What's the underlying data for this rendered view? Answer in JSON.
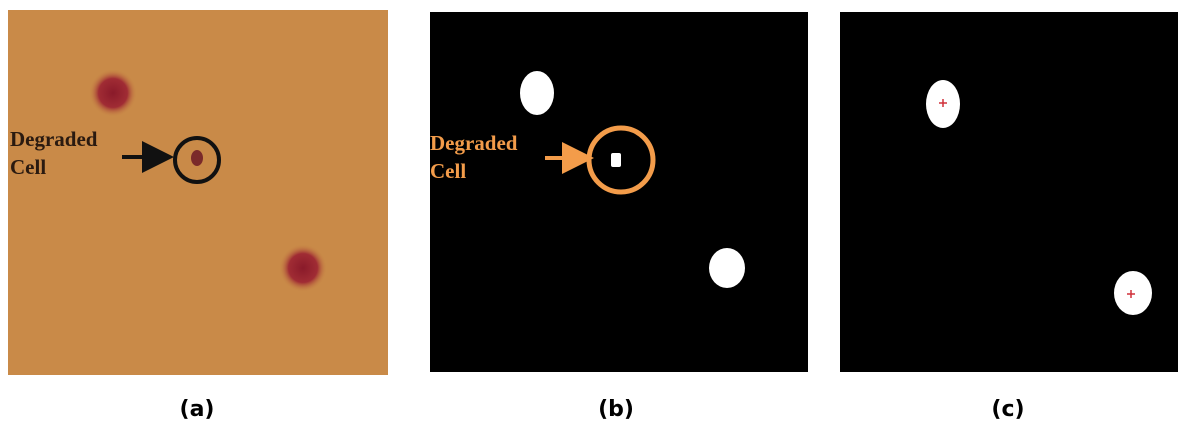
{
  "panels": [
    {
      "caption": "(a)",
      "annotation": [
        "Degraded",
        "Cell"
      ]
    },
    {
      "caption": "(b)",
      "annotation": [
        "Degraded",
        "Cell"
      ]
    },
    {
      "caption": "(c)"
    }
  ]
}
